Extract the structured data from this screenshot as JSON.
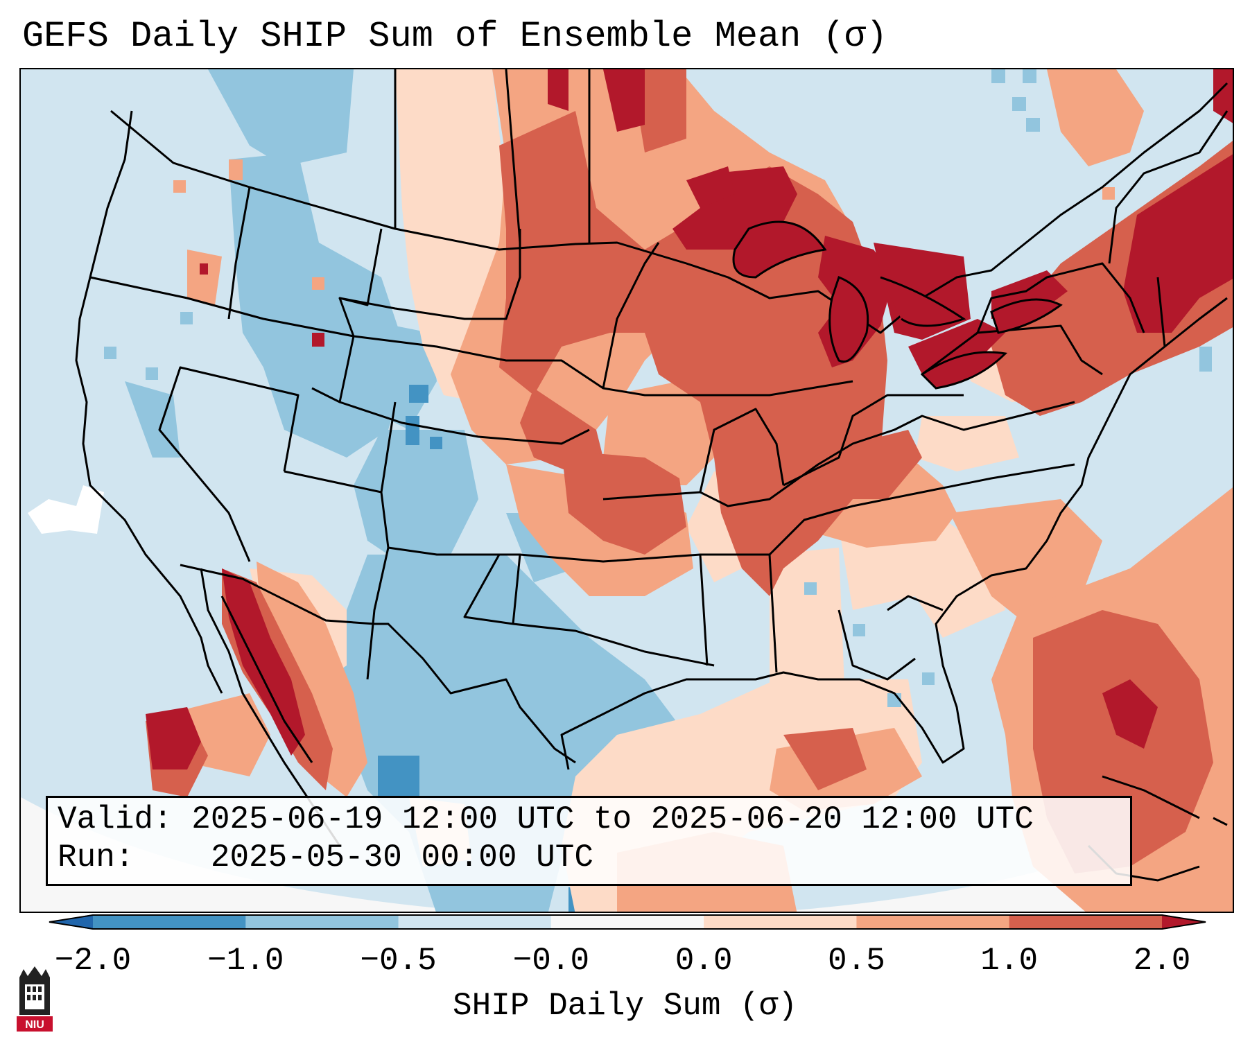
{
  "title": "GEFS Daily SHIP Sum of Ensemble Mean (σ)",
  "info": {
    "valid_label": "Valid:",
    "valid_value": "2025-06-19 12:00 UTC to 2025-06-20 12:00 UTC",
    "run_label": "Run:",
    "run_value": "2025-05-30 00:00 UTC"
  },
  "colorbar": {
    "label": "SHIP Daily Sum (σ)",
    "ticks": [
      "−2.0",
      "−1.0",
      "−0.5",
      "−0.0",
      "0.0",
      "0.5",
      "1.0",
      "2.0"
    ],
    "bin_colors": [
      "#4393c3",
      "#92c5de",
      "#d1e5f0",
      "#f7f7f7",
      "#fddbc7",
      "#f4a582",
      "#d6604d"
    ],
    "under_color": "#2166ac",
    "over_color": "#b2182b"
  },
  "logo": {
    "text": "NIU"
  }
}
